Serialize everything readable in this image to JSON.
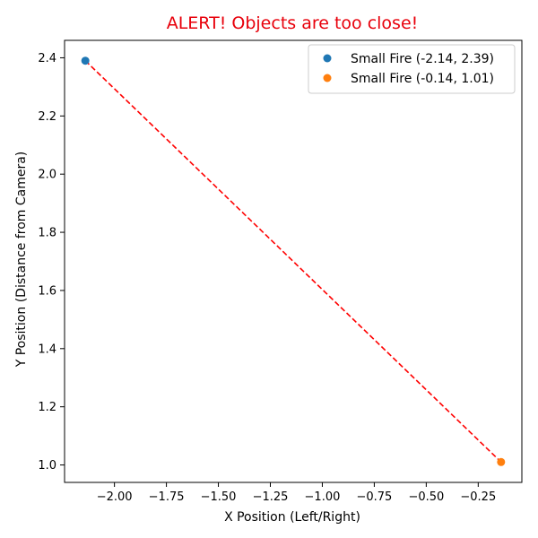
{
  "chart_data": {
    "type": "scatter",
    "title": "ALERT! Objects are too close!",
    "title_color": "#e8000b",
    "xlabel": "X Position (Left/Right)",
    "ylabel": "Y Position (Distance from Camera)",
    "xlim": [
      -2.24,
      -0.04
    ],
    "ylim": [
      0.94,
      2.46
    ],
    "x_ticks": [
      -2.0,
      -1.75,
      -1.5,
      -1.25,
      -1.0,
      -0.75,
      -0.5,
      -0.25
    ],
    "x_tick_labels": [
      "−2.00",
      "−1.75",
      "−1.50",
      "−1.25",
      "−1.00",
      "−0.75",
      "−0.50",
      "−0.25"
    ],
    "y_ticks": [
      1.0,
      1.2,
      1.4,
      1.6,
      1.8,
      2.0,
      2.2,
      2.4
    ],
    "y_tick_labels": [
      "1.0",
      "1.2",
      "1.4",
      "1.6",
      "1.8",
      "2.0",
      "2.2",
      "2.4"
    ],
    "series": [
      {
        "name": "Small Fire (-2.14, 2.39)",
        "x": [
          -2.14
        ],
        "y": [
          2.39
        ],
        "color": "#1f77b4"
      },
      {
        "name": "Small Fire (-0.14, 1.01)",
        "x": [
          -0.14
        ],
        "y": [
          1.01
        ],
        "color": "#ff7f0e"
      }
    ],
    "connector": {
      "from": [
        -2.14,
        2.39
      ],
      "to": [
        -0.14,
        1.01
      ],
      "color": "#ff0000",
      "style": "dashed"
    },
    "legend_position": "top-right",
    "grid": false
  }
}
